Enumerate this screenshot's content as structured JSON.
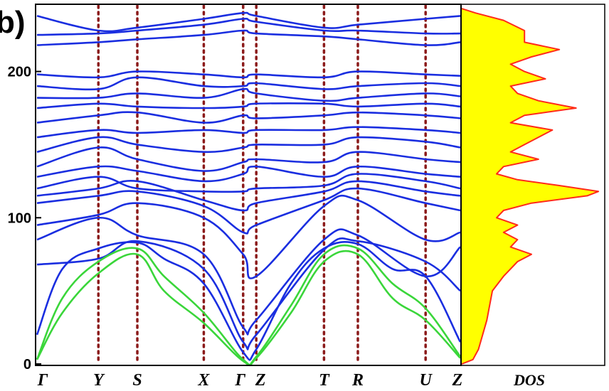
{
  "chart_data": {
    "type": "line",
    "panel_label": "b)",
    "ylim": [
      0,
      245
    ],
    "y_ticks": [
      {
        "value": 0,
        "label": "0"
      },
      {
        "value": 100,
        "label": "100"
      },
      {
        "value": 200,
        "label": "200"
      }
    ],
    "high_symmetry_points": [
      {
        "label": "Γ",
        "pos": 0.0
      },
      {
        "label": "Y",
        "pos": 0.145
      },
      {
        "label": "S",
        "pos": 0.237
      },
      {
        "label": "X",
        "pos": 0.394
      },
      {
        "label": "Γ",
        "pos": 0.487
      },
      {
        "label": "Z",
        "pos": 0.518
      },
      {
        "label": "T",
        "pos": 0.678
      },
      {
        "label": "R",
        "pos": 0.758
      },
      {
        "label": "U",
        "pos": 0.918
      },
      {
        "label": "Z",
        "pos": 1.0
      }
    ],
    "vline_color": "#8b1a1a",
    "acoustic_color": "#3ad63a",
    "optical_color": "#1a2ee0",
    "acoustic_bands": [
      [
        [
          0,
          3
        ],
        [
          0.06,
          45
        ],
        [
          0.145,
          70
        ],
        [
          0.237,
          79
        ],
        [
          0.3,
          60
        ],
        [
          0.394,
          35
        ],
        [
          0.487,
          3
        ],
        [
          0.518,
          5
        ],
        [
          0.6,
          40
        ],
        [
          0.678,
          75
        ],
        [
          0.758,
          79
        ],
        [
          0.84,
          55
        ],
        [
          0.918,
          38
        ],
        [
          1.0,
          5
        ]
      ],
      [
        [
          0,
          3
        ],
        [
          0.06,
          35
        ],
        [
          0.145,
          62
        ],
        [
          0.237,
          75
        ],
        [
          0.3,
          50
        ],
        [
          0.394,
          28
        ],
        [
          0.487,
          2
        ],
        [
          0.518,
          4
        ],
        [
          0.6,
          35
        ],
        [
          0.678,
          70
        ],
        [
          0.758,
          75
        ],
        [
          0.84,
          45
        ],
        [
          0.918,
          30
        ],
        [
          1.0,
          4
        ]
      ]
    ],
    "optical_bands": [
      [
        [
          0,
          20
        ],
        [
          0.06,
          65
        ],
        [
          0.145,
          79
        ],
        [
          0.237,
          83
        ],
        [
          0.3,
          72
        ],
        [
          0.394,
          55
        ],
        [
          0.487,
          8
        ],
        [
          0.518,
          10
        ],
        [
          0.6,
          55
        ],
        [
          0.678,
          79
        ],
        [
          0.758,
          82
        ],
        [
          0.84,
          65
        ],
        [
          0.918,
          60
        ],
        [
          1.0,
          15
        ]
      ],
      [
        [
          0,
          68
        ],
        [
          0.145,
          72
        ],
        [
          0.237,
          84
        ],
        [
          0.394,
          65
        ],
        [
          0.487,
          15
        ],
        [
          0.518,
          20
        ],
        [
          0.678,
          78
        ],
        [
          0.758,
          84
        ],
        [
          0.918,
          70
        ],
        [
          1.0,
          50
        ]
      ],
      [
        [
          0,
          85
        ],
        [
          0.145,
          100
        ],
        [
          0.237,
          88
        ],
        [
          0.394,
          75
        ],
        [
          0.487,
          25
        ],
        [
          0.518,
          30
        ],
        [
          0.678,
          85
        ],
        [
          0.758,
          88
        ],
        [
          0.918,
          60
        ],
        [
          1.0,
          80
        ]
      ],
      [
        [
          0,
          95
        ],
        [
          0.145,
          102
        ],
        [
          0.237,
          110
        ],
        [
          0.394,
          100
        ],
        [
          0.487,
          75
        ],
        [
          0.518,
          60
        ],
        [
          0.678,
          108
        ],
        [
          0.758,
          112
        ],
        [
          0.918,
          85
        ],
        [
          1.0,
          90
        ]
      ],
      [
        [
          0,
          110
        ],
        [
          0.145,
          115
        ],
        [
          0.237,
          118
        ],
        [
          0.394,
          108
        ],
        [
          0.487,
          90
        ],
        [
          0.518,
          95
        ],
        [
          0.678,
          112
        ],
        [
          0.758,
          120
        ],
        [
          0.918,
          110
        ],
        [
          1.0,
          105
        ]
      ],
      [
        [
          0,
          115
        ],
        [
          0.145,
          120
        ],
        [
          0.237,
          125
        ],
        [
          0.394,
          112
        ],
        [
          0.487,
          105
        ],
        [
          0.518,
          110
        ],
        [
          0.678,
          118
        ],
        [
          0.758,
          125
        ],
        [
          0.918,
          118
        ],
        [
          1.0,
          115
        ]
      ],
      [
        [
          0,
          120
        ],
        [
          0.145,
          128
        ],
        [
          0.237,
          120
        ],
        [
          0.394,
          118
        ],
        [
          0.487,
          118
        ],
        [
          0.518,
          120
        ],
        [
          0.678,
          122
        ],
        [
          0.758,
          130
        ],
        [
          0.918,
          125
        ],
        [
          1.0,
          120
        ]
      ],
      [
        [
          0,
          128
        ],
        [
          0.145,
          135
        ],
        [
          0.237,
          132
        ],
        [
          0.394,
          125
        ],
        [
          0.487,
          130
        ],
        [
          0.518,
          135
        ],
        [
          0.678,
          128
        ],
        [
          0.758,
          135
        ],
        [
          0.918,
          130
        ],
        [
          1.0,
          128
        ]
      ],
      [
        [
          0,
          135
        ],
        [
          0.145,
          148
        ],
        [
          0.237,
          140
        ],
        [
          0.394,
          132
        ],
        [
          0.487,
          138
        ],
        [
          0.518,
          140
        ],
        [
          0.678,
          138
        ],
        [
          0.758,
          145
        ],
        [
          0.918,
          140
        ],
        [
          1.0,
          138
        ]
      ],
      [
        [
          0,
          145
        ],
        [
          0.145,
          155
        ],
        [
          0.237,
          150
        ],
        [
          0.394,
          145
        ],
        [
          0.487,
          148
        ],
        [
          0.518,
          150
        ],
        [
          0.678,
          150
        ],
        [
          0.758,
          155
        ],
        [
          0.918,
          152
        ],
        [
          1.0,
          148
        ]
      ],
      [
        [
          0,
          155
        ],
        [
          0.145,
          160
        ],
        [
          0.237,
          158
        ],
        [
          0.394,
          160
        ],
        [
          0.487,
          158
        ],
        [
          0.518,
          160
        ],
        [
          0.678,
          160
        ],
        [
          0.758,
          162
        ],
        [
          0.918,
          160
        ],
        [
          1.0,
          158
        ]
      ],
      [
        [
          0,
          165
        ],
        [
          0.145,
          170
        ],
        [
          0.237,
          172
        ],
        [
          0.394,
          165
        ],
        [
          0.487,
          170
        ],
        [
          0.518,
          168
        ],
        [
          0.678,
          170
        ],
        [
          0.758,
          172
        ],
        [
          0.918,
          170
        ],
        [
          1.0,
          168
        ]
      ],
      [
        [
          0,
          175
        ],
        [
          0.145,
          178
        ],
        [
          0.237,
          176
        ],
        [
          0.394,
          175
        ],
        [
          0.487,
          176
        ],
        [
          0.518,
          178
        ],
        [
          0.678,
          178
        ],
        [
          0.758,
          176
        ],
        [
          0.918,
          178
        ],
        [
          1.0,
          176
        ]
      ],
      [
        [
          0,
          182
        ],
        [
          0.145,
          182
        ],
        [
          0.237,
          185
        ],
        [
          0.394,
          182
        ],
        [
          0.487,
          188
        ],
        [
          0.518,
          185
        ],
        [
          0.678,
          180
        ],
        [
          0.758,
          182
        ],
        [
          0.918,
          185
        ],
        [
          1.0,
          183
        ]
      ],
      [
        [
          0,
          190
        ],
        [
          0.145,
          188
        ],
        [
          0.237,
          196
        ],
        [
          0.394,
          190
        ],
        [
          0.487,
          190
        ],
        [
          0.518,
          192
        ],
        [
          0.678,
          188
        ],
        [
          0.758,
          190
        ],
        [
          0.918,
          192
        ],
        [
          1.0,
          190
        ]
      ],
      [
        [
          0,
          198
        ],
        [
          0.145,
          196
        ],
        [
          0.237,
          200
        ],
        [
          0.394,
          198
        ],
        [
          0.487,
          196
        ],
        [
          0.518,
          198
        ],
        [
          0.678,
          196
        ],
        [
          0.758,
          200
        ],
        [
          0.918,
          198
        ],
        [
          1.0,
          197
        ]
      ],
      [
        [
          0,
          218
        ],
        [
          0.145,
          220
        ],
        [
          0.237,
          222
        ],
        [
          0.394,
          225
        ],
        [
          0.487,
          228
        ],
        [
          0.518,
          226
        ],
        [
          0.678,
          224
        ],
        [
          0.758,
          222
        ],
        [
          0.918,
          218
        ],
        [
          1.0,
          220
        ]
      ],
      [
        [
          0,
          225
        ],
        [
          0.145,
          226
        ],
        [
          0.237,
          228
        ],
        [
          0.394,
          232
        ],
        [
          0.487,
          236
        ],
        [
          0.518,
          234
        ],
        [
          0.678,
          228
        ],
        [
          0.758,
          228
        ],
        [
          0.918,
          226
        ],
        [
          1.0,
          226
        ]
      ],
      [
        [
          0,
          238
        ],
        [
          0.145,
          228
        ],
        [
          0.237,
          230
        ],
        [
          0.394,
          236
        ],
        [
          0.487,
          240
        ],
        [
          0.518,
          238
        ],
        [
          0.678,
          230
        ],
        [
          0.758,
          232
        ],
        [
          0.918,
          236
        ],
        [
          1.0,
          238
        ]
      ]
    ],
    "dos": {
      "label": "DOS",
      "fill_color": "#ffff00",
      "line_color": "#ff2a1a",
      "points": [
        [
          0,
          0
        ],
        [
          3,
          0.08
        ],
        [
          10,
          0.12
        ],
        [
          20,
          0.15
        ],
        [
          30,
          0.18
        ],
        [
          40,
          0.2
        ],
        [
          50,
          0.22
        ],
        [
          60,
          0.3
        ],
        [
          70,
          0.4
        ],
        [
          75,
          0.5
        ],
        [
          80,
          0.35
        ],
        [
          85,
          0.4
        ],
        [
          90,
          0.3
        ],
        [
          95,
          0.4
        ],
        [
          100,
          0.25
        ],
        [
          105,
          0.3
        ],
        [
          110,
          0.5
        ],
        [
          115,
          0.9
        ],
        [
          118,
          0.98
        ],
        [
          122,
          0.7
        ],
        [
          126,
          0.4
        ],
        [
          130,
          0.25
        ],
        [
          135,
          0.3
        ],
        [
          140,
          0.55
        ],
        [
          145,
          0.35
        ],
        [
          150,
          0.45
        ],
        [
          155,
          0.55
        ],
        [
          160,
          0.65
        ],
        [
          165,
          0.35
        ],
        [
          170,
          0.45
        ],
        [
          175,
          0.82
        ],
        [
          180,
          0.55
        ],
        [
          185,
          0.4
        ],
        [
          190,
          0.35
        ],
        [
          195,
          0.6
        ],
        [
          200,
          0.45
        ],
        [
          205,
          0.35
        ],
        [
          210,
          0.5
        ],
        [
          215,
          0.7
        ],
        [
          220,
          0.45
        ],
        [
          228,
          0.45
        ],
        [
          235,
          0.3
        ],
        [
          240,
          0.1
        ],
        [
          243,
          0
        ]
      ]
    }
  }
}
